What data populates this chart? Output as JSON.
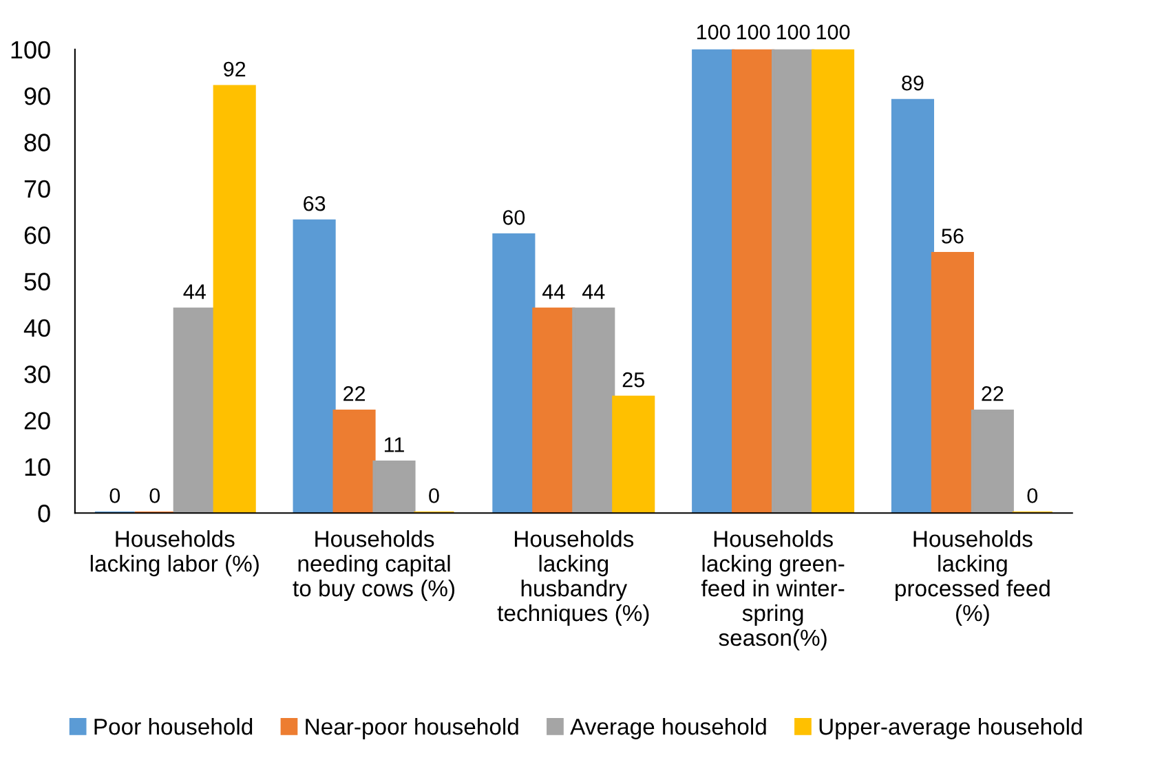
{
  "chart_data": {
    "type": "bar",
    "categories": [
      "Households\nlacking labor (%)",
      "Households\nneeding capital\nto buy cows (%)",
      "Households\nlacking\nhusbandry\ntechniques (%)",
      "Households\nlacking green-\nfeed in winter-\nspring\nseason(%)",
      "Households\nlacking\nprocessed feed\n(%)"
    ],
    "series": [
      {
        "name": "Poor household",
        "color": "#5b9bd5",
        "values": [
          0,
          63,
          60,
          100,
          89
        ]
      },
      {
        "name": "Near-poor household",
        "color": "#ed7d31",
        "values": [
          0,
          22,
          44,
          100,
          56
        ]
      },
      {
        "name": "Average household",
        "color": "#a5a5a5",
        "values": [
          44,
          11,
          44,
          100,
          22
        ]
      },
      {
        "name": "Upper-average household",
        "color": "#ffc000",
        "values": [
          92,
          0,
          25,
          100,
          0
        ]
      }
    ],
    "ylim": [
      0,
      100
    ],
    "yticks": [
      0,
      10,
      20,
      30,
      40,
      50,
      60,
      70,
      80,
      90,
      100
    ],
    "data_labels": true,
    "grid": false,
    "legend": "bottom"
  }
}
